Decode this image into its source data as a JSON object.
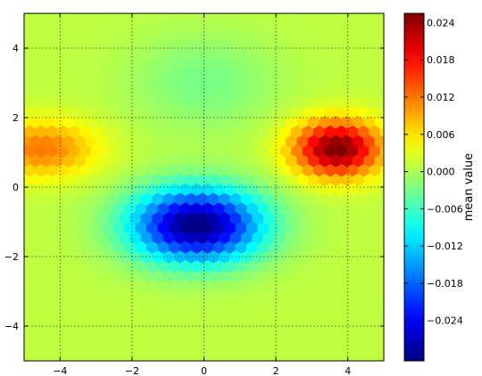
{
  "chart_data": {
    "type": "heatmap",
    "subtype": "hexbin",
    "title": "",
    "xlabel": "",
    "ylabel": "",
    "xlim": [
      -5,
      5
    ],
    "ylim": [
      -5,
      5
    ],
    "x_ticks": [
      -4,
      -2,
      0,
      2,
      4
    ],
    "x_tick_labels": [
      "−4",
      "−2",
      "0",
      "2",
      "4"
    ],
    "y_ticks": [
      4,
      2,
      0,
      -2,
      -4
    ],
    "y_tick_labels": [
      "4",
      "2",
      "0",
      "−2",
      "−4"
    ],
    "grid": true,
    "colormap": "jet",
    "colorbar": {
      "label": "mean value",
      "range": [
        -0.0305,
        0.0255
      ],
      "ticks": [
        0.024,
        0.018,
        0.012,
        0.006,
        0.0,
        -0.006,
        -0.012,
        -0.018,
        -0.024
      ],
      "tick_labels": [
        "0.024",
        "0.018",
        "0.012",
        "0.006",
        "0.000",
        "−0.006",
        "−0.012",
        "−0.018",
        "−0.024"
      ]
    },
    "features": [
      {
        "kind": "minimum",
        "x": -0.2,
        "y": -1.1,
        "value": -0.029
      },
      {
        "kind": "maximum",
        "x": 3.7,
        "y": 1.1,
        "value": 0.024
      },
      {
        "kind": "maximum",
        "x": -4.5,
        "y": 1.1,
        "value": 0.012
      },
      {
        "kind": "minimum",
        "x": 0.0,
        "y": 3.0,
        "value": -0.003
      }
    ],
    "background_value": 0.001
  }
}
